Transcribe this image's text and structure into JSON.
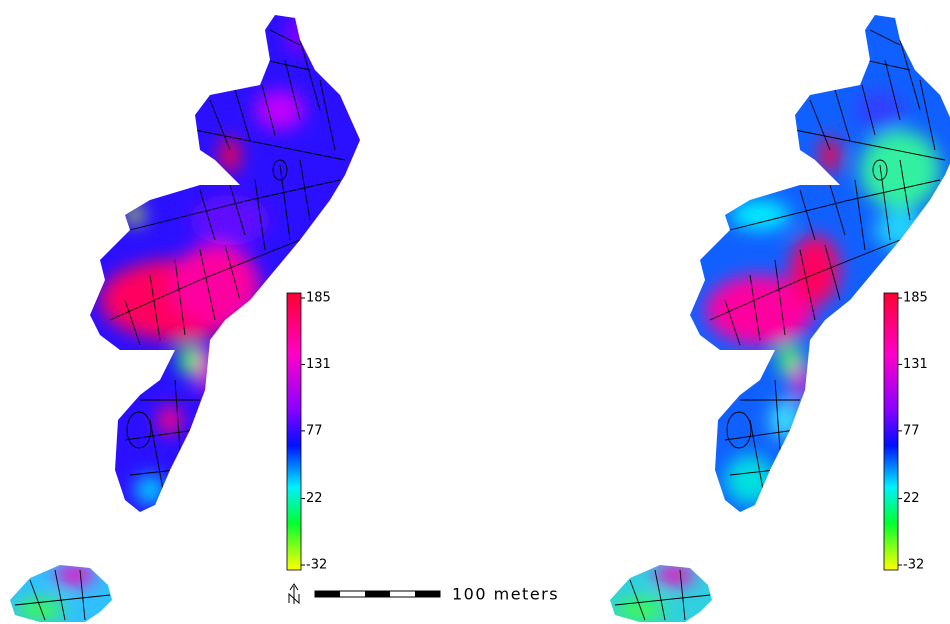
{
  "panels": [
    {
      "colorbar": {
        "ticks": [
          185,
          131,
          77,
          22,
          -32
        ]
      }
    },
    {
      "colorbar": {
        "ticks": [
          185,
          131,
          77,
          22,
          -32
        ]
      }
    }
  ],
  "scale_bar": {
    "label": "100 meters"
  }
}
